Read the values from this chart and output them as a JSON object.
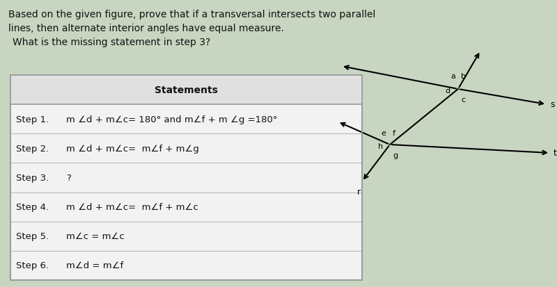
{
  "bg_color": "#c8d5c0",
  "title_text": "Based on the given figure, prove that if a transversal intersects two parallel\nlines, then alternate interior angles have equal measure.",
  "question_text": "What is the missing statement in step 3?",
  "table_header": "Statements",
  "table_rows": [
    [
      "Step 1.",
      "m ∠d + m∠c= 180° and m∠f + m ∠g =180°"
    ],
    [
      "Step 2.",
      "m ∠d + m∠c=  m∠f + m∠g"
    ],
    [
      "Step 3.",
      "?"
    ],
    [
      "Step 4.",
      "m ∠d + m∠c=  m∠f + m∠c"
    ],
    [
      "Step 5.",
      "m∠c = m∠c"
    ],
    [
      "Step 6.",
      "m∠d = m∠f"
    ]
  ],
  "text_color": "#111111",
  "table_bg": "#f2f2f2",
  "table_header_bg": "#e0e0e0",
  "table_border": "#999999",
  "row_line": "#bbbbbb"
}
